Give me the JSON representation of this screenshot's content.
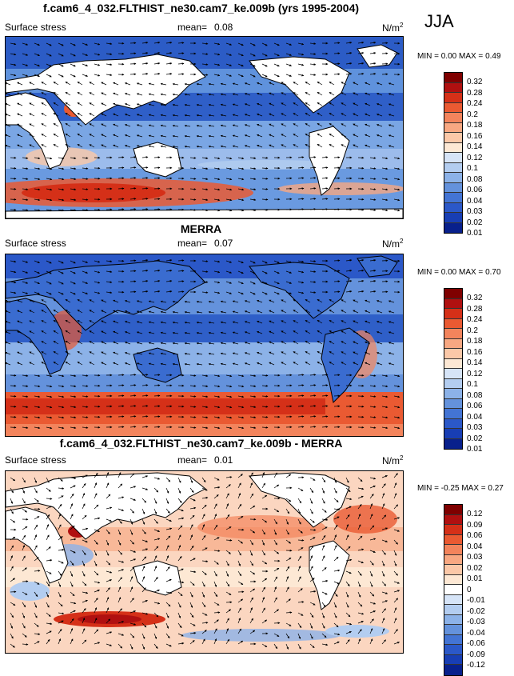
{
  "season": "JJA",
  "colors": {
    "positive_scale": [
      "#7f0000",
      "#b01010",
      "#d53018",
      "#ea5a32",
      "#f3845c",
      "#f8a882",
      "#fbc8a8",
      "#fde8d4",
      "#d6e4f7",
      "#b3cdf0",
      "#8cb2e8",
      "#6492dc",
      "#4374d4",
      "#2b58c8",
      "#183eb4",
      "#08208c"
    ],
    "difference_scale": [
      "#7f0000",
      "#b01010",
      "#d53018",
      "#ea5a32",
      "#f3845c",
      "#f8a882",
      "#fbc8a8",
      "#fde8d4",
      "#ffffff",
      "#d6e4f7",
      "#b3cdf0",
      "#8cb2e8",
      "#6492dc",
      "#4374d4",
      "#2b58c8",
      "#183eb4",
      "#08208c"
    ],
    "land": "#ffffff",
    "coast": "#000000"
  },
  "panels": [
    {
      "title": "f.cam6_4_032.FLTHIST_ne30.cam7_ke.009b (yrs 1995-2004)",
      "variable": "Surface stress",
      "mean_label": "mean=",
      "mean_value": "0.08",
      "units": "N/m",
      "units_sup": "2",
      "min_label": "MIN =",
      "min_value": "0.00",
      "max_label": "MAX =",
      "max_value": "0.49",
      "legend_ticks": [
        "0.32",
        "0.28",
        "0.24",
        "0.2",
        "0.18",
        "0.16",
        "0.14",
        "0.12",
        "0.1",
        "0.08",
        "0.06",
        "0.04",
        "0.03",
        "0.02",
        "0.01"
      ]
    },
    {
      "title": "MERRA",
      "variable": "Surface stress",
      "mean_label": "mean=",
      "mean_value": "0.07",
      "units": "N/m",
      "units_sup": "2",
      "min_label": "MIN =",
      "min_value": "0.00",
      "max_label": "MAX =",
      "max_value": "0.70",
      "legend_ticks": [
        "0.32",
        "0.28",
        "0.24",
        "0.2",
        "0.18",
        "0.16",
        "0.14",
        "0.12",
        "0.1",
        "0.08",
        "0.06",
        "0.04",
        "0.03",
        "0.02",
        "0.01"
      ]
    },
    {
      "title": "f.cam6_4_032.FLTHIST_ne30.cam7_ke.009b - MERRA",
      "variable": "Surface stress",
      "mean_label": "mean=",
      "mean_value": "0.01",
      "units": "N/m",
      "units_sup": "2",
      "min_label": "MIN =",
      "min_value": "-0.25",
      "max_label": "MAX =",
      "max_value": "0.27",
      "legend_ticks": [
        "0.12",
        "0.09",
        "0.06",
        "0.04",
        "0.03",
        "0.02",
        "0.01",
        "0",
        "-0.01",
        "-0.02",
        "-0.03",
        "-0.04",
        "-0.06",
        "-0.09",
        "-0.12"
      ]
    }
  ]
}
